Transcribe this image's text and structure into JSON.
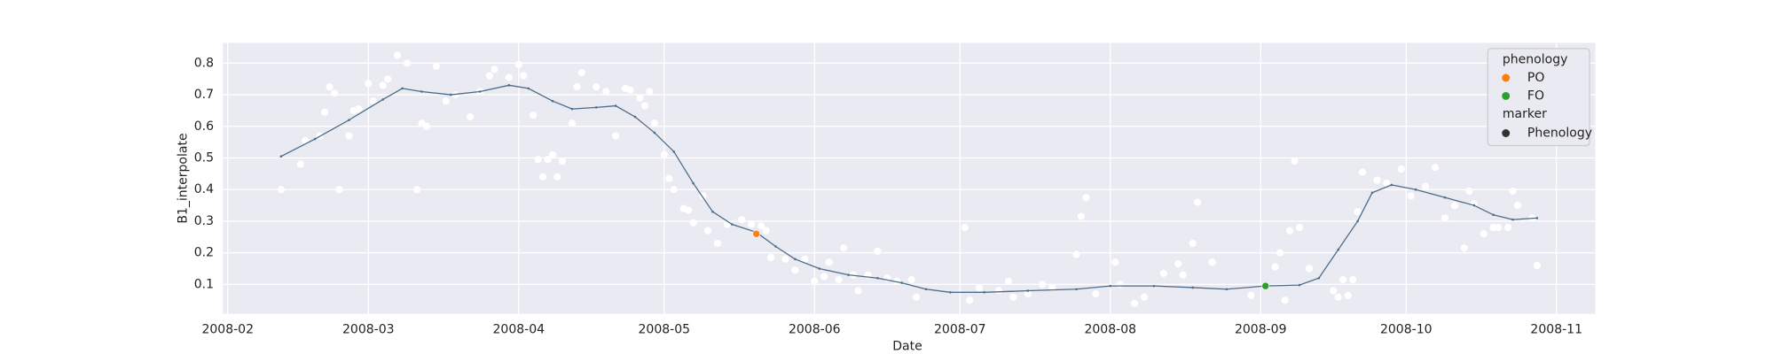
{
  "chart_data": {
    "type": "scatter",
    "xlabel": "Date",
    "ylabel": "B1_interpolate",
    "color": "#ffffff",
    "grid": true,
    "xlim": [
      "2008-01-31",
      "2008-11-09"
    ],
    "xticks": [
      "2008-02",
      "2008-03",
      "2008-04",
      "2008-05",
      "2008-06",
      "2008-07",
      "2008-08",
      "2008-09",
      "2008-10",
      "2008-11"
    ],
    "ylim": [
      0.007,
      0.864
    ],
    "yticks": [
      0.1,
      0.2,
      0.3,
      0.4,
      0.5,
      0.6,
      0.7,
      0.8
    ],
    "x": [
      "2008-02-12",
      "2008-02-16",
      "2008-02-17",
      "2008-02-20",
      "2008-02-21",
      "2008-02-22",
      "2008-02-23",
      "2008-02-24",
      "2008-02-26",
      "2008-02-27",
      "2008-02-28",
      "2008-03-01",
      "2008-03-02",
      "2008-03-04",
      "2008-03-05",
      "2008-03-07",
      "2008-03-09",
      "2008-03-11",
      "2008-03-12",
      "2008-03-13",
      "2008-03-15",
      "2008-03-17",
      "2008-03-19",
      "2008-03-22",
      "2008-03-24",
      "2008-03-26",
      "2008-03-27",
      "2008-03-30",
      "2008-04-01",
      "2008-04-02",
      "2008-04-04",
      "2008-04-05",
      "2008-04-06",
      "2008-04-07",
      "2008-04-08",
      "2008-04-09",
      "2008-04-10",
      "2008-04-12",
      "2008-04-13",
      "2008-04-14",
      "2008-04-17",
      "2008-04-19",
      "2008-04-21",
      "2008-04-23",
      "2008-04-24",
      "2008-04-26",
      "2008-04-27",
      "2008-04-28",
      "2008-04-29",
      "2008-05-01",
      "2008-05-02",
      "2008-05-03",
      "2008-05-05",
      "2008-05-06",
      "2008-05-07",
      "2008-05-09",
      "2008-05-10",
      "2008-05-12",
      "2008-05-14",
      "2008-05-17",
      "2008-05-19",
      "2008-05-21",
      "2008-05-22",
      "2008-05-23",
      "2008-05-26",
      "2008-05-28",
      "2008-05-30",
      "2008-06-01",
      "2008-06-03",
      "2008-06-04",
      "2008-06-06",
      "2008-06-07",
      "2008-06-09",
      "2008-06-10",
      "2008-06-12",
      "2008-06-14",
      "2008-06-16",
      "2008-06-18",
      "2008-06-21",
      "2008-06-22",
      "2008-07-02",
      "2008-07-03",
      "2008-07-05",
      "2008-07-09",
      "2008-07-11",
      "2008-07-12",
      "2008-07-15",
      "2008-07-18",
      "2008-07-20",
      "2008-07-25",
      "2008-07-26",
      "2008-07-27",
      "2008-07-29",
      "2008-08-02",
      "2008-08-03",
      "2008-08-06",
      "2008-08-08",
      "2008-08-12",
      "2008-08-15",
      "2008-08-16",
      "2008-08-18",
      "2008-08-19",
      "2008-08-22",
      "2008-08-30",
      "2008-09-04",
      "2008-09-05",
      "2008-09-06",
      "2008-09-07",
      "2008-09-08",
      "2008-09-09",
      "2008-09-11",
      "2008-09-16",
      "2008-09-17",
      "2008-09-18",
      "2008-09-19",
      "2008-09-20",
      "2008-09-21",
      "2008-09-22",
      "2008-09-25",
      "2008-09-27",
      "2008-09-30",
      "2008-10-02",
      "2008-10-05",
      "2008-10-07",
      "2008-10-09",
      "2008-10-11",
      "2008-10-13",
      "2008-10-14",
      "2008-10-15",
      "2008-10-17",
      "2008-10-19",
      "2008-10-20",
      "2008-10-22",
      "2008-10-23",
      "2008-10-24",
      "2008-10-27",
      "2008-10-28"
    ],
    "values": [
      0.4,
      0.48,
      0.555,
      0.57,
      0.645,
      0.725,
      0.705,
      0.4,
      0.57,
      0.65,
      0.655,
      0.735,
      0.68,
      0.73,
      0.75,
      0.825,
      0.8,
      0.4,
      0.61,
      0.6,
      0.79,
      0.68,
      0.7,
      0.63,
      0.71,
      0.76,
      0.78,
      0.755,
      0.795,
      0.76,
      0.635,
      0.495,
      0.44,
      0.495,
      0.51,
      0.44,
      0.49,
      0.61,
      0.725,
      0.77,
      0.725,
      0.71,
      0.57,
      0.72,
      0.715,
      0.69,
      0.665,
      0.71,
      0.61,
      0.51,
      0.435,
      0.4,
      0.34,
      0.335,
      0.295,
      0.38,
      0.27,
      0.23,
      0.29,
      0.305,
      0.29,
      0.285,
      0.27,
      0.185,
      0.18,
      0.145,
      0.18,
      0.11,
      0.125,
      0.17,
      0.115,
      0.215,
      0.13,
      0.08,
      0.13,
      0.205,
      0.12,
      0.11,
      0.115,
      0.06,
      0.28,
      0.05,
      0.09,
      0.08,
      0.11,
      0.06,
      0.07,
      0.1,
      0.09,
      0.195,
      0.315,
      0.375,
      0.07,
      0.17,
      0.1,
      0.04,
      0.06,
      0.135,
      0.165,
      0.13,
      0.23,
      0.36,
      0.17,
      0.065,
      0.155,
      0.2,
      0.05,
      0.27,
      0.49,
      0.28,
      0.15,
      0.08,
      0.06,
      0.115,
      0.065,
      0.115,
      0.33,
      0.455,
      0.43,
      0.42,
      0.465,
      0.38,
      0.41,
      0.47,
      0.31,
      0.35,
      0.215,
      0.395,
      0.355,
      0.26,
      0.28,
      0.28,
      0.28,
      0.395,
      0.35,
      0.31,
      0.16
    ],
    "line": {
      "color": "#4c6b87",
      "x": [
        "2008-02-12",
        "2008-02-19",
        "2008-02-26",
        "2008-03-04",
        "2008-03-08",
        "2008-03-12",
        "2008-03-18",
        "2008-03-24",
        "2008-03-30",
        "2008-04-03",
        "2008-04-08",
        "2008-04-12",
        "2008-04-17",
        "2008-04-21",
        "2008-04-25",
        "2008-04-29",
        "2008-05-03",
        "2008-05-07",
        "2008-05-11",
        "2008-05-15",
        "2008-05-20",
        "2008-05-24",
        "2008-05-28",
        "2008-06-02",
        "2008-06-08",
        "2008-06-14",
        "2008-06-19",
        "2008-06-24",
        "2008-06-29",
        "2008-07-06",
        "2008-07-15",
        "2008-07-25",
        "2008-08-01",
        "2008-08-10",
        "2008-08-18",
        "2008-08-25",
        "2008-09-02",
        "2008-09-09",
        "2008-09-13",
        "2008-09-17",
        "2008-09-21",
        "2008-09-24",
        "2008-09-28",
        "2008-10-03",
        "2008-10-09",
        "2008-10-15",
        "2008-10-19",
        "2008-10-23",
        "2008-10-28"
      ],
      "values": [
        0.505,
        0.56,
        0.62,
        0.685,
        0.72,
        0.71,
        0.7,
        0.71,
        0.73,
        0.72,
        0.68,
        0.655,
        0.66,
        0.665,
        0.63,
        0.58,
        0.52,
        0.42,
        0.33,
        0.29,
        0.265,
        0.22,
        0.18,
        0.15,
        0.13,
        0.12,
        0.105,
        0.085,
        0.075,
        0.075,
        0.08,
        0.085,
        0.095,
        0.095,
        0.09,
        0.085,
        0.095,
        0.098,
        0.12,
        0.21,
        0.3,
        0.39,
        0.415,
        0.4,
        0.375,
        0.35,
        0.32,
        0.305,
        0.31
      ]
    },
    "legend_title": "phenology",
    "marker_title": "marker",
    "marker_label": "Phenology",
    "marker_color": "#333333",
    "series": [
      {
        "name": "PO",
        "color": "#ff7f0e",
        "x": [
          "2008-05-20"
        ],
        "values": [
          0.26
        ]
      },
      {
        "name": "FO",
        "color": "#2ca02c",
        "x": [
          "2008-09-02"
        ],
        "values": [
          0.095
        ]
      }
    ]
  }
}
